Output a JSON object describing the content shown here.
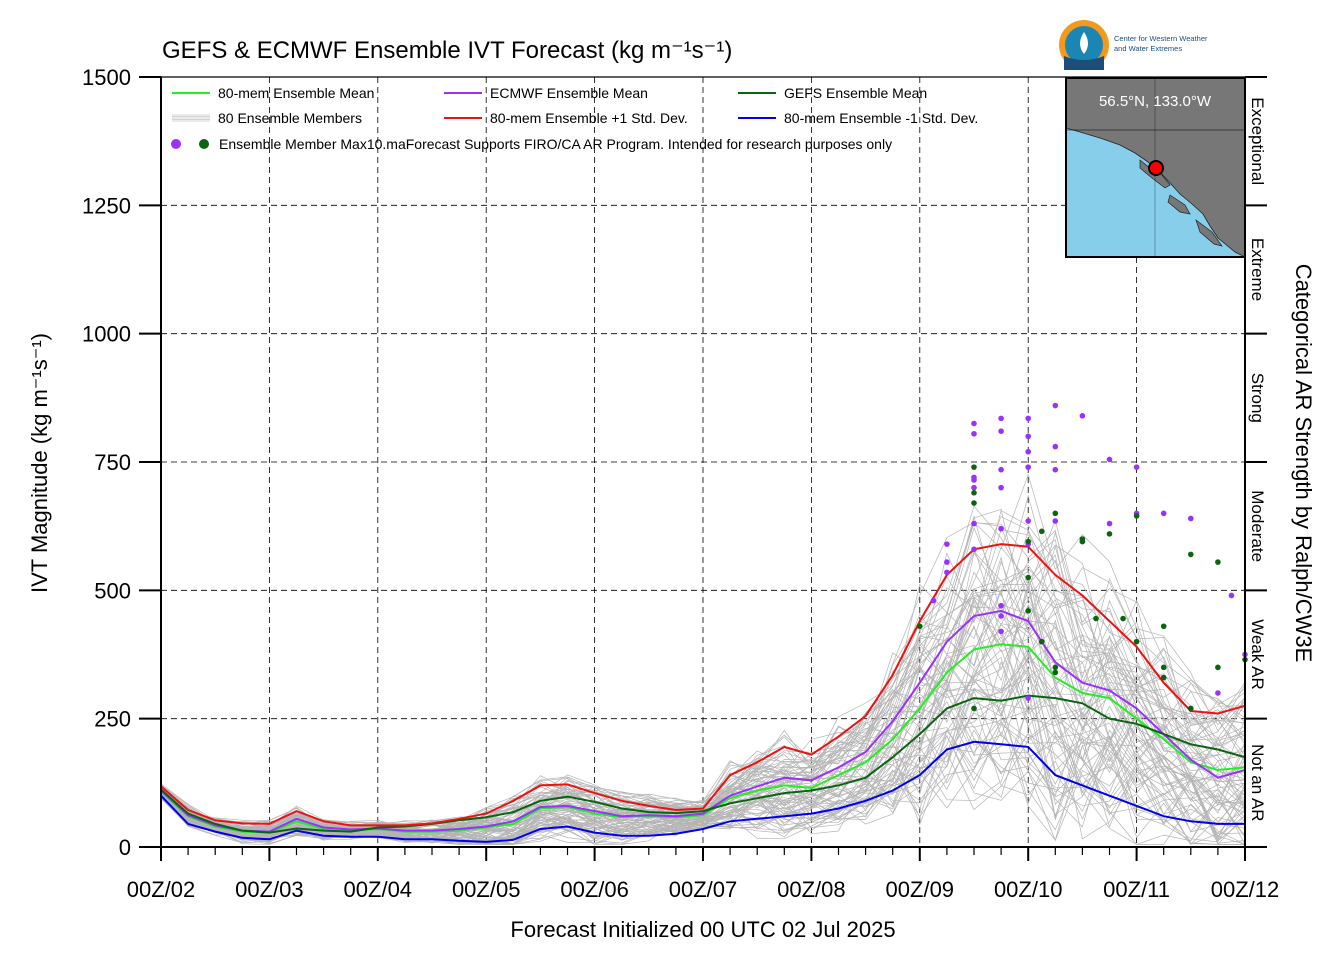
{
  "chart_data": {
    "type": "line",
    "title": "GEFS & ECMWF Ensemble IVT Forecast (kg m⁻¹s⁻¹)",
    "ylabel": "IVT Magnitude (kg m⁻¹s⁻¹)",
    "xlabel": "Forecast Initialized 00 UTC 02 Jul 2025",
    "right_label": "Categorical AR Strength by Ralph/CW3E",
    "ylim": [
      0,
      1500
    ],
    "xlim": [
      0,
      240
    ],
    "x_unit": "forecast hour",
    "yticks": [
      0,
      250,
      500,
      750,
      1000,
      1250,
      1500
    ],
    "x_tick_hours": [
      0,
      24,
      48,
      72,
      96,
      120,
      144,
      168,
      192,
      216,
      240
    ],
    "x_tick_labels": [
      "00Z/02",
      "00Z/03",
      "00Z/04",
      "00Z/05",
      "00Z/06",
      "00Z/07",
      "00Z/08",
      "00Z/09",
      "00Z/10",
      "00Z/11",
      "00Z/12"
    ],
    "grid": true,
    "legend_placement": "top-left",
    "categories": [
      {
        "label": "Not an AR",
        "low": 0,
        "high": 250
      },
      {
        "label": "Weak AR",
        "low": 250,
        "high": 500
      },
      {
        "label": "Moderate",
        "low": 500,
        "high": 750
      },
      {
        "label": "Strong",
        "low": 750,
        "high": 1000
      },
      {
        "label": "Extreme",
        "low": 1000,
        "high": 1250
      },
      {
        "label": "Exceptional",
        "low": 1250,
        "high": 1500
      }
    ],
    "series": [
      {
        "name": "80-mem Ensemble Mean",
        "color": "#22ee22",
        "x": [
          0,
          6,
          12,
          18,
          24,
          30,
          36,
          42,
          48,
          54,
          60,
          66,
          72,
          78,
          84,
          90,
          96,
          102,
          108,
          114,
          120,
          126,
          132,
          138,
          144,
          150,
          156,
          162,
          168,
          174,
          180,
          186,
          192,
          198,
          204,
          210,
          216,
          222,
          228,
          234,
          240
        ],
        "values": [
          108,
          60,
          40,
          30,
          28,
          50,
          35,
          32,
          35,
          30,
          30,
          32,
          38,
          45,
          75,
          78,
          65,
          58,
          60,
          58,
          62,
          95,
          110,
          120,
          115,
          140,
          165,
          210,
          270,
          340,
          385,
          395,
          390,
          330,
          300,
          290,
          250,
          210,
          165,
          150,
          155
        ]
      },
      {
        "name": "ECMWF Ensemble Mean",
        "color": "#9b30ff",
        "x": [
          0,
          6,
          12,
          18,
          24,
          30,
          36,
          42,
          48,
          54,
          60,
          66,
          72,
          78,
          84,
          90,
          96,
          102,
          108,
          114,
          120,
          126,
          132,
          138,
          144,
          150,
          156,
          162,
          168,
          174,
          180,
          186,
          192,
          198,
          204,
          210,
          216,
          222,
          228,
          234,
          240
        ],
        "values": [
          110,
          62,
          42,
          32,
          30,
          55,
          38,
          34,
          36,
          32,
          32,
          35,
          40,
          50,
          78,
          80,
          70,
          60,
          62,
          60,
          65,
          100,
          118,
          135,
          130,
          155,
          185,
          245,
          320,
          400,
          450,
          460,
          440,
          360,
          320,
          305,
          270,
          220,
          170,
          135,
          150
        ]
      },
      {
        "name": "GEFS Ensemble Mean",
        "color": "#0a6410",
        "x": [
          0,
          6,
          12,
          18,
          24,
          30,
          36,
          42,
          48,
          54,
          60,
          66,
          72,
          78,
          84,
          90,
          96,
          102,
          108,
          114,
          120,
          126,
          132,
          138,
          144,
          150,
          156,
          162,
          168,
          174,
          180,
          186,
          192,
          198,
          204,
          210,
          216,
          222,
          228,
          234,
          240
        ],
        "values": [
          112,
          65,
          45,
          32,
          28,
          36,
          32,
          30,
          38,
          40,
          45,
          52,
          58,
          68,
          90,
          98,
          88,
          75,
          68,
          66,
          70,
          85,
          95,
          105,
          110,
          120,
          135,
          175,
          220,
          270,
          290,
          285,
          295,
          290,
          280,
          250,
          240,
          220,
          200,
          190,
          175
        ]
      },
      {
        "name": "80-mem Ensemble +1 Std. Dev.",
        "color": "#ee1111",
        "x": [
          0,
          6,
          12,
          18,
          24,
          30,
          36,
          42,
          48,
          54,
          60,
          66,
          72,
          78,
          84,
          90,
          96,
          102,
          108,
          114,
          120,
          126,
          132,
          138,
          144,
          150,
          156,
          162,
          168,
          174,
          180,
          186,
          192,
          198,
          204,
          210,
          216,
          222,
          228,
          234,
          240
        ],
        "values": [
          118,
          72,
          52,
          46,
          45,
          70,
          50,
          42,
          42,
          42,
          46,
          55,
          65,
          90,
          120,
          122,
          105,
          90,
          80,
          72,
          75,
          140,
          165,
          195,
          180,
          215,
          255,
          335,
          440,
          530,
          580,
          590,
          585,
          530,
          490,
          440,
          390,
          320,
          265,
          260,
          275
        ]
      },
      {
        "name": "80-mem Ensemble -1 Std. Dev.",
        "color": "#0000ee",
        "x": [
          0,
          6,
          12,
          18,
          24,
          30,
          36,
          42,
          48,
          54,
          60,
          66,
          72,
          78,
          84,
          90,
          96,
          102,
          108,
          114,
          120,
          126,
          132,
          138,
          144,
          150,
          156,
          162,
          168,
          174,
          180,
          186,
          192,
          198,
          204,
          210,
          216,
          222,
          228,
          234,
          240
        ],
        "values": [
          100,
          45,
          30,
          18,
          15,
          32,
          22,
          20,
          20,
          15,
          15,
          12,
          10,
          14,
          35,
          40,
          28,
          22,
          22,
          26,
          35,
          50,
          55,
          60,
          65,
          75,
          90,
          110,
          140,
          190,
          205,
          200,
          195,
          140,
          120,
          100,
          80,
          60,
          50,
          45,
          45
        ]
      }
    ],
    "ecmwf_member_max": {
      "name": "ECMWF member max (purple dots)",
      "color": "#9b30ff",
      "x": [
        171,
        174,
        174,
        174,
        180,
        180,
        180,
        180,
        180,
        180,
        180,
        186,
        186,
        186,
        186,
        186,
        186,
        186,
        186,
        192,
        192,
        192,
        192,
        192,
        192,
        192,
        198,
        198,
        198,
        198,
        204,
        204,
        210,
        210,
        216,
        216,
        222,
        228,
        234,
        237,
        240
      ],
      "values": [
        480,
        535,
        555,
        590,
        825,
        805,
        715,
        700,
        720,
        630,
        580,
        835,
        810,
        735,
        700,
        620,
        470,
        450,
        420,
        835,
        800,
        740,
        770,
        635,
        590,
        290,
        860,
        780,
        735,
        635,
        840,
        595,
        755,
        630,
        740,
        650,
        650,
        640,
        300,
        490,
        375
      ]
    },
    "gefs_member_max": {
      "name": "GEFS member max (green dots)",
      "color": "#0a6410",
      "x": [
        168,
        180,
        180,
        180,
        180,
        192,
        192,
        192,
        195,
        195,
        198,
        198,
        198,
        204,
        204,
        207,
        210,
        213,
        216,
        216,
        222,
        222,
        222,
        228,
        228,
        234,
        234,
        240
      ],
      "values": [
        430,
        690,
        670,
        270,
        740,
        525,
        460,
        595,
        615,
        400,
        650,
        350,
        340,
        600,
        595,
        445,
        610,
        445,
        645,
        400,
        430,
        350,
        330,
        570,
        270,
        555,
        350,
        365
      ]
    },
    "map": {
      "label": "56.5°N, 133.0°W",
      "ocean_color": "#87ceeb",
      "land_color": "#777777",
      "marker_color": "#ff0000"
    },
    "logo_text": [
      "Center for Western Weather",
      "and Water Extremes"
    ],
    "legend": [
      {
        "label": "80-mem Ensemble Mean",
        "color": "#22ee22",
        "kind": "line"
      },
      {
        "label": "ECMWF Ensemble Mean",
        "color": "#9b30ff",
        "kind": "line"
      },
      {
        "label": "GEFS Ensemble Mean",
        "color": "#0a6410",
        "kind": "line"
      },
      {
        "label": "80 Ensemble Members",
        "color": "#aaaaaa",
        "kind": "members"
      },
      {
        "label": "80-mem Ensemble +1 Std. Dev.",
        "color": "#ee1111",
        "kind": "line"
      },
      {
        "label": "80-mem Ensemble -1 Std. Dev.",
        "color": "#0000ee",
        "kind": "line"
      }
    ],
    "legend_dots_label": "Ensemble Member Max",
    "disclaimer": "10.maForecast Supports FIRO/CA AR Program. Intended for research purposes only"
  }
}
